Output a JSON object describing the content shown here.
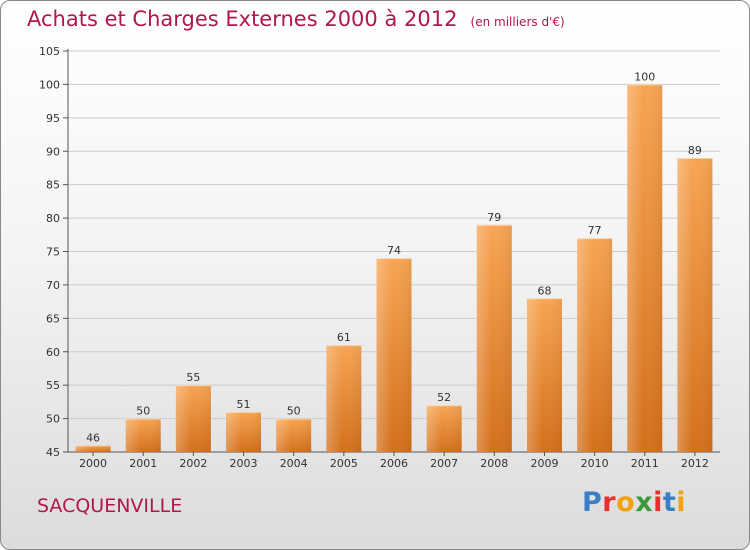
{
  "header": {
    "title": "Achats et Charges Externes 2000 à 2012",
    "unit": "(en milliers d'€)"
  },
  "footer": {
    "commune": "SACQUENVILLE",
    "logo": [
      "P",
      "r",
      "o",
      "x",
      "i",
      "t",
      "i"
    ],
    "logo_colors": [
      "#3a7fc4",
      "#e6302c",
      "#f2a20d",
      "#3a9a3a",
      "#e6302c",
      "#3a7fc4",
      "#f2a20d"
    ]
  },
  "colors": {
    "title": "#b01848",
    "bar_top": "#f7a553",
    "bar_bottom": "#d4701b",
    "grid": "#cccccc"
  },
  "chart_data": {
    "type": "bar",
    "title": "Achats et Charges Externes 2000 à 2012",
    "subtitle": "(en milliers d'€)",
    "xlabel": "",
    "ylabel": "",
    "categories": [
      "2000",
      "2001",
      "2002",
      "2003",
      "2004",
      "2005",
      "2006",
      "2007",
      "2008",
      "2009",
      "2010",
      "2011",
      "2012"
    ],
    "values": [
      46,
      50,
      55,
      51,
      50,
      61,
      74,
      52,
      79,
      68,
      77,
      100,
      89
    ],
    "ylim": [
      45,
      105
    ],
    "yticks": [
      45,
      50,
      55,
      60,
      65,
      70,
      75,
      80,
      85,
      90,
      95,
      100,
      105
    ],
    "grid": true,
    "legend": "none"
  }
}
